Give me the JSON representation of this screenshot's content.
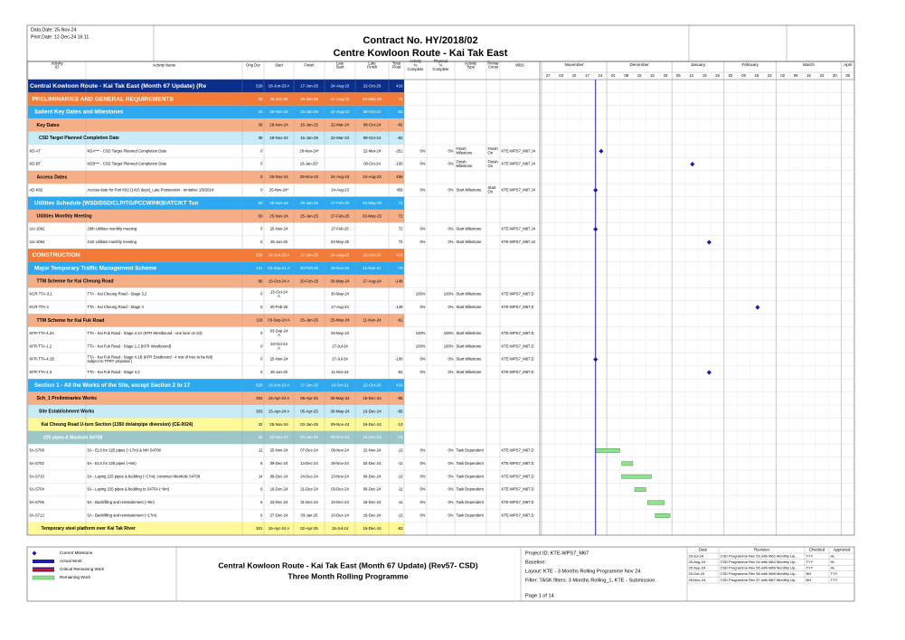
{
  "header": {
    "data_date": "Data Date: 25-Nov-24",
    "print_date": "Print Date: 12-Dec-24 16:11",
    "title_line1": "Contract No. HY/2018/02",
    "title_line2": "Centre Kowloon Route - Kai Tak East"
  },
  "columns": [
    "Activity ID",
    "Activity Name",
    "Orig Dur",
    "Start",
    "Finish",
    "Late Start",
    "Late Finish",
    "Total Float",
    "Activity % Complete",
    "Physical % Complete",
    "Activity Type",
    "Primar Const",
    "WBS"
  ],
  "timeline": {
    "months": [
      "November",
      "December",
      "January",
      "February",
      "March",
      "April"
    ],
    "days": [
      "27",
      "03",
      "10",
      "17",
      "24",
      "01",
      "08",
      "15",
      "22",
      "29",
      "05",
      "12",
      "19",
      "26",
      "02",
      "09",
      "16",
      "23",
      "02",
      "09",
      "16",
      "23",
      "30",
      "06"
    ]
  },
  "rows": [
    {
      "level": 0,
      "cells": [
        null,
        "Central Kowloon Route - Kai Tak East (Month 67 Update) (Re",
        529,
        "18-Jun-23 A",
        "17-Jun-25",
        "24-Aug-23",
        "22-Oct-26",
        416,
        null,
        null,
        null,
        null,
        null
      ]
    },
    {
      "level": 1,
      "cells": [
        null,
        "PRELIMINARIES AND GENERAL REQUIREMENTS",
        30,
        "25-Jun-25",
        "25-Jun-25",
        "24-Aug-23",
        "02-May-25",
        72,
        null,
        null,
        null,
        null,
        null
      ]
    },
    {
      "level": 2,
      "cells": [
        null,
        "Salient Key Dates and Milestones",
        43,
        "25-Nov-24",
        "16-Jan-25",
        "24-Aug-23",
        "08-Oct-24",
        -62,
        null,
        null,
        null,
        null,
        null
      ]
    },
    {
      "level": 3,
      "cells": [
        null,
        "Key Dates",
        39,
        "28-Nov-24",
        "16-Jan-25",
        "22-Mar-24",
        "08-Oct-24",
        -82,
        null,
        null,
        null,
        null,
        null
      ]
    },
    {
      "level": 4,
      "cells": [
        null,
        "CSD Target Planned Completion Date",
        39,
        "28-Nov-24",
        "16-Jan-25",
        "22-Mar-24",
        "08-Oct-24",
        -82,
        null,
        null,
        null,
        null,
        null
      ]
    },
    {
      "cells": [
        "KD-AT",
        "KDA*** - CSD Target Planned Completion Date",
        0,
        null,
        "28-Nov-24*",
        null,
        "22-Mar-24",
        -251,
        "0%",
        "0%",
        "Finish Milestone",
        "Finish On",
        "KTE-WPS7_M67.J4"
      ]
    },
    {
      "cells": [
        "KD-BT",
        "KDB*** - CSD Target Planned Completion Date",
        0,
        null,
        "16-Jan-25*",
        null,
        "08-Oct-24",
        -100,
        "0%",
        "0%",
        "Finish Milestone",
        "Finish On",
        "KTE-WPS7_M67.J4"
      ]
    },
    {
      "level": 3,
      "cells": [
        null,
        "Access Dates",
        0,
        "25-Nov-24",
        "25-Nov-24",
        "24-Aug-23",
        "24-Aug-23",
        459,
        null,
        null,
        null,
        null,
        null
      ]
    },
    {
      "cells": [
        "AD-K82",
        "Access date for Part K82 (1415 days)_Late Possession - tentative 1/9/2024",
        0,
        "25-Nov-24*",
        null,
        "24-Aug-23",
        null,
        459,
        "0%",
        "0%",
        "Start Milestone",
        "Start On",
        "KTE-WPS7_M67.J4"
      ]
    },
    {
      "level": 2,
      "cells": [
        null,
        "Utilities Schedule (WSD/DSD/CLP/TG/PCCW/HKB/ATC/KT Tun",
        50,
        "25-Nov-24",
        "25-Jan-25",
        "27-Feb-25",
        "02-May-25",
        72,
        null,
        null,
        null,
        null,
        null
      ]
    },
    {
      "level": 3,
      "cells": [
        null,
        "Utilities Monthly Meeting",
        50,
        "25-Nov-24",
        "25-Jan-25",
        "27-Feb-25",
        "02-May-25",
        72,
        null,
        null,
        null,
        null,
        null
      ]
    },
    {
      "cells": [
        "UU-1062",
        "20th Utilities monthly meeting",
        0,
        "25-Nov-24",
        null,
        "27-Feb-25",
        null,
        72,
        "0%",
        "0%",
        "Start Milestone",
        null,
        "KTE-WPS7_M67.J4"
      ]
    },
    {
      "cells": [
        "UU-1064",
        "21st Utilities monthly meeting",
        0,
        "25-Jan-25",
        null,
        "02-May-25",
        null,
        72,
        "0%",
        "0%",
        "Start Milestone",
        null,
        "KTE-WPS7_M67.J4"
      ]
    },
    {
      "level": 1,
      "cells": [
        null,
        "CONSTRUCTION",
        529,
        "18-Jun-23 A",
        "17-Jun-25",
        "24-Aug-23",
        "22-Oct-26",
        416,
        null,
        null,
        null,
        null,
        null
      ]
    },
    {
      "level": 2,
      "cells": [
        null,
        "Major Temporary Traffic Management Scheme",
        131,
        "03-Sep-21 A",
        "20-Feb-25",
        "25-Nov-24",
        "11-Nov-21",
        -78,
        null,
        null,
        null,
        null,
        null
      ]
    },
    {
      "level": 3,
      "cells": [
        null,
        "TTM Scheme for Kai Cheung Road",
        86,
        "15-Oct-24 A",
        "20-Feb-25",
        "30-May-24",
        "17-Aug-24",
        -148,
        null,
        null,
        null,
        null,
        null
      ]
    },
    {
      "cells": [
        "KCR-TTA-3.2",
        "TTA - Kai Cheung Road - Stage 3.2",
        0,
        "15-Oct-24 A",
        null,
        "30-May-24",
        null,
        null,
        "100%",
        "100%",
        "Start Milestone",
        null,
        "KTE-WPS7_M67.D"
      ]
    },
    {
      "cells": [
        "KCR-TTA-1",
        "TTA - Kai Cheung Road - Stage 4",
        0,
        "20-Feb-25",
        null,
        "17-Aug-24",
        null,
        -148,
        "0%",
        "0%",
        "Start Milestone",
        null,
        "KTE-WPS7_M67.D"
      ]
    },
    {
      "level": 3,
      "cells": [
        null,
        "TTM Scheme for Kai Fuk Road",
        118,
        "03-Sep-24 A",
        "25-Jan-25",
        "25-May-24",
        "11-Nov-24",
        -62,
        null,
        null,
        null,
        null,
        null
      ]
    },
    {
      "cells": [
        "KFR-TTA-4.2A",
        "TTA - Kai Fuk Road - Stage 4.2A (KFR Westbound - one lane on S3)",
        0,
        "03-Sep-24 A",
        null,
        "25-May-24",
        null,
        null,
        "100%",
        "100%",
        "Start Milestone",
        null,
        "KTE-WPS7_M67.D"
      ]
    },
    {
      "cells": [
        "KFR-TTA-1.2",
        "TTA - Kai Fuk Road - Stage 1.2 (KFR Westbound)",
        0,
        "24-Oct-24 A",
        null,
        "27-Jul-24",
        null,
        null,
        "100%",
        "100%",
        "Start Milestone",
        null,
        "KTE-WPS7_M67.D"
      ]
    },
    {
      "cells": [
        "KFR-TTA-4.1B",
        "TTA - Kai Fuk Road - Stage 4.1B (KFR Eastbound - 4 nos of tree to be felt) subject to TPRT proposal )",
        0,
        "25-Nov-24",
        null,
        "27-Jul-24",
        null,
        -100,
        "0%",
        "0%",
        "Start Milestone",
        null,
        "KTE-WPS7_M67.D"
      ]
    },
    {
      "cells": [
        "KFR-TTA-4.3",
        "TTA - Kai Fuk Road - Stage 4.3",
        0,
        "25-Jan-25",
        null,
        "11-Nov-24",
        null,
        -62,
        "0%",
        "0%",
        "Start Milestone",
        null,
        "KTE-WPS7_M67.D"
      ]
    },
    {
      "level": 2,
      "cells": [
        null,
        "Section 1 - All the Works of the Site, except Section 2 to 17",
        529,
        "18-Jun-23 A",
        "17-Jun-25",
        "19-Oct-21",
        "22-Oct-26",
        416,
        null,
        null,
        null,
        null,
        null
      ]
    },
    {
      "level": 3,
      "cells": [
        null,
        "Sch_1 Preliminaries Works",
        303,
        "15-Apr-24 A",
        "05-Apr-25",
        "30-May-24",
        "16-Dec-24",
        -85,
        null,
        null,
        null,
        null,
        null
      ]
    },
    {
      "level": 4,
      "cells": [
        null,
        "Site Establishment Works",
        303,
        "15-Apr-24 A",
        "05-Apr-25",
        "30-May-24",
        "16-Dec-24",
        -85,
        null,
        null,
        null,
        null,
        null
      ]
    },
    {
      "level": 5,
      "cells": [
        null,
        "Kai Cheung Road U-turn Section (1350 dn/ainpipe diversion) (CE-0024)",
        32,
        "25-Nov-24",
        "03-Jan-25",
        "09-Nov-24",
        "16-Dec-24",
        -13,
        null,
        null,
        null,
        null,
        null
      ]
    },
    {
      "level": 6,
      "cells": [
        null,
        "225 pipes & Manhole S4708",
        32,
        "25-Nov-24",
        "03-Jan-25",
        "09-Nov-24",
        "16-Dec-24",
        -13,
        null,
        null,
        null,
        null,
        null
      ]
    },
    {
      "cells": [
        "5A-S708",
        "5A - ELS for 225 pipes (~17m) & MH S4708",
        12,
        "25-Nov-24",
        "07-Dec-24",
        "09-Nov-24",
        "22-Nov-24",
        -13,
        "0%",
        "0%",
        "Task Dependent",
        null,
        "KTE-WPS7_M67.D"
      ]
    },
    {
      "cells": [
        "5A-S702",
        "5A - ELS for 225 pipes (~9m)",
        6,
        "09-Dec-24",
        "14-Dec-24",
        "26-Nov-24",
        "02-Dec-24",
        -11,
        "0%",
        "0%",
        "Task Dependent",
        null,
        "KTE-WPS7_M67.D"
      ]
    },
    {
      "cells": [
        "5A-S710",
        "5A - Laying 225 pipes & bedding (~17m); construct Manhole S4708",
        14,
        "09-Dec-24",
        "24-Dec-24",
        "23-Nov-24",
        "09-Dec-24",
        -13,
        "0%",
        "0%",
        "Task Dependent",
        null,
        "KTE-WPS7_M67.D"
      ]
    },
    {
      "cells": [
        "5A-S704",
        "5A - Laying 225 pipes & bedding to S470A (~9m)",
        6,
        "16-Dec-24",
        "21-Dec-24",
        "03-Dec-24",
        "09-Dec-24",
        -11,
        "0%",
        "0%",
        "Task Dependent",
        null,
        "KTE-WPS7_M67.D"
      ]
    },
    {
      "cells": [
        "5A-S706",
        "5A - Backfilling and reinstatement (~9m)",
        6,
        "23-Dec-24",
        "31-Dec-24",
        "10-Dec-24",
        "16-Dec-24",
        -11,
        "0%",
        "0%",
        "Task Dependent",
        null,
        "KTE-WPS7_M67.D"
      ]
    },
    {
      "cells": [
        "5A-S712",
        "5A - Backfilling and reinstatement (~17m)",
        6,
        "27-Dec-24",
        "03-Jan-25",
        "10-Dec-24",
        "16-Dec-24",
        -13,
        "0%",
        "0%",
        "Task Dependent",
        null,
        "KTE-WPS7_M67.D"
      ]
    },
    {
      "level": 5,
      "cells": [
        null,
        "Temporary steel platform over Kai Tak River",
        301,
        "15-Apr-24 A",
        "02-Apr-25",
        "19-Jul-24",
        "16-Dec-24",
        -83,
        null,
        null,
        null,
        null,
        null
      ]
    }
  ],
  "legend": [
    "Current Milestone",
    "Actual Work",
    "Critical Remaining Work",
    "Remaining Work"
  ],
  "footer": {
    "title_lines": [
      "Central Kowloon Route - Kai Tak East (Month 67 Update) (Rev57- CSD)",
      "Three Month Rolling Programme"
    ],
    "info": [
      "Project ID: KTE-WPS7_M67",
      "Baseline:",
      "Layout: KTE - 3 Months Rolling Programme Nov 24",
      "Filter: TASK filters: 3 Months Rolling_1, KTE - Submission."
    ],
    "page": "Page 1 of 14"
  },
  "revisions": {
    "headers": [
      "Date",
      "Revision",
      "Checked",
      "Approved"
    ],
    "rows": [
      [
        "29-Jul-24",
        "CSD Programme Rev 53 with M62 Monthly Up...",
        "TYY",
        "HL"
      ],
      [
        "25-Aug-24",
        "CSD Programme Rev 54 with M64 Monthly Up...",
        "TYY",
        "HL"
      ],
      [
        "25-Sep-24",
        "CSD Programme Rev 55 with M65 Monthly Up...",
        "TYY",
        "HL"
      ],
      [
        "20-Oct-24",
        "CSD Programme Rev 56 with M66 Monthly Up...",
        "NH",
        "TYY"
      ],
      [
        "25-Nov-24",
        "CSD Programme Rev 57 with M67 Monthly Up...",
        "NH",
        "TYY"
      ]
    ]
  }
}
